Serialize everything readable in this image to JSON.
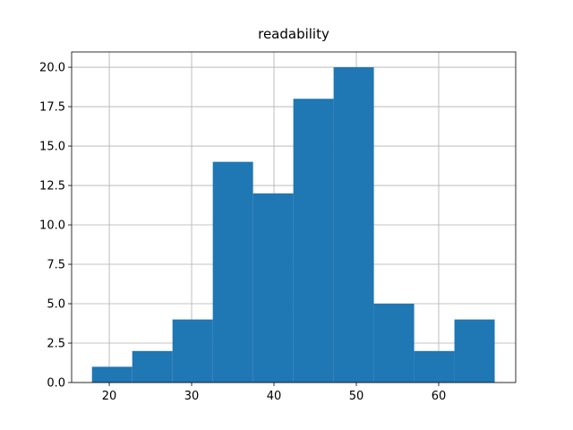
{
  "chart_data": {
    "type": "histogram",
    "title": "readability",
    "bins": [
      17.9,
      22.79,
      27.68,
      32.57,
      37.46,
      42.35,
      47.24,
      52.13,
      57.02,
      61.91,
      66.8
    ],
    "values": [
      1,
      2,
      4,
      14,
      12,
      18,
      20,
      5,
      2,
      4
    ],
    "color": "#1f77b4",
    "xlim": [
      15.43,
      69.35
    ],
    "xticks": [
      20,
      30,
      40,
      50,
      60
    ],
    "ylim": [
      0,
      20.97
    ],
    "yticks": [
      {
        "value": 0,
        "label": "0.0"
      },
      {
        "value": 2.5,
        "label": "2.5"
      },
      {
        "value": 5,
        "label": "5.0"
      },
      {
        "value": 7.5,
        "label": "7.5"
      },
      {
        "value": 10,
        "label": "10.0"
      },
      {
        "value": 12.5,
        "label": "12.5"
      },
      {
        "value": 15,
        "label": "15.0"
      },
      {
        "value": 17.5,
        "label": "17.5"
      },
      {
        "value": 20,
        "label": "20.0"
      }
    ],
    "grid": true
  }
}
